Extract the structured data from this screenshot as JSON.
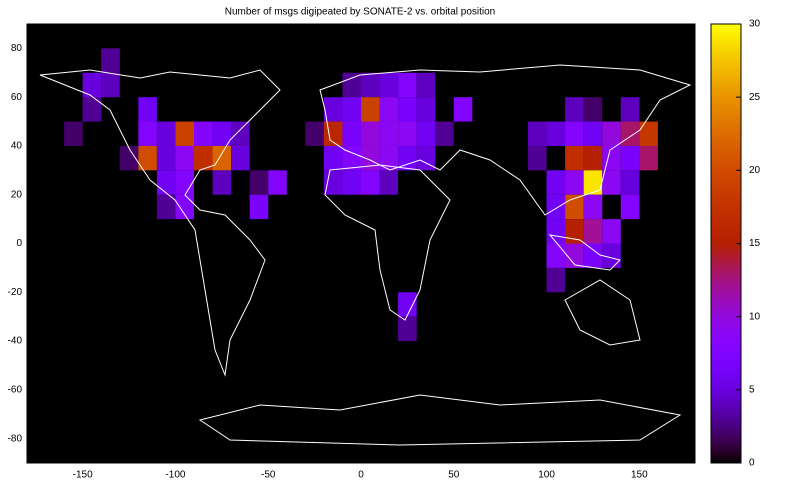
{
  "chart_data": {
    "type": "heatmap",
    "title": "Number of msgs digipeated by SONATE-2 vs. orbital position",
    "x": [
      -145,
      -135,
      -145,
      -135,
      -145,
      -155,
      -115,
      -115,
      -105,
      -95,
      -85,
      -75,
      -65,
      -125,
      -115,
      -105,
      -95,
      -85,
      -75,
      -65,
      -105,
      -95,
      -75,
      -55,
      -45,
      -105,
      -95,
      -55,
      -5,
      5,
      15,
      25,
      35,
      -15,
      -5,
      5,
      15,
      25,
      35,
      55,
      -25,
      -15,
      -5,
      5,
      15,
      25,
      35,
      45,
      -15,
      -5,
      5,
      15,
      25,
      35,
      -15,
      -5,
      5,
      15,
      25,
      25,
      115,
      125,
      145,
      95,
      105,
      115,
      125,
      135,
      145,
      155,
      95,
      115,
      125,
      135,
      145,
      155,
      105,
      115,
      125,
      135,
      145,
      105,
      115,
      125,
      145,
      105,
      115,
      125,
      135,
      105,
      115,
      125,
      135,
      105
    ],
    "y": [
      65,
      75,
      55,
      65,
      55,
      45,
      55,
      45,
      45,
      45,
      45,
      45,
      45,
      35,
      35,
      35,
      35,
      35,
      35,
      35,
      25,
      25,
      25,
      25,
      25,
      15,
      15,
      15,
      65,
      65,
      65,
      65,
      65,
      55,
      55,
      55,
      55,
      55,
      55,
      55,
      45,
      45,
      45,
      45,
      45,
      45,
      45,
      45,
      35,
      35,
      35,
      35,
      35,
      35,
      25,
      25,
      25,
      25,
      -25,
      -35,
      55,
      55,
      55,
      45,
      45,
      45,
      45,
      45,
      45,
      45,
      35,
      35,
      35,
      35,
      35,
      35,
      25,
      25,
      25,
      25,
      25,
      15,
      15,
      15,
      15,
      5,
      5,
      5,
      5,
      -5,
      -5,
      -5,
      -5,
      -15
    ],
    "values": [
      5,
      3,
      4,
      4,
      3,
      2,
      6,
      8,
      5,
      19,
      8,
      6,
      4,
      2,
      20,
      5,
      9,
      17,
      22,
      5,
      6,
      8,
      4,
      2,
      8,
      3,
      8,
      7,
      3,
      4,
      5,
      8,
      4,
      5,
      6,
      19,
      9,
      7,
      5,
      8,
      2,
      16,
      7,
      10,
      9,
      9,
      6,
      3,
      6,
      8,
      10,
      9,
      6,
      5,
      5,
      6,
      8,
      4,
      6,
      3,
      4,
      2,
      4,
      4,
      5,
      8,
      6,
      10,
      13,
      18,
      3,
      17,
      15,
      9,
      7,
      13,
      6,
      9,
      29,
      9,
      5,
      6,
      20,
      9,
      8,
      6,
      15,
      12,
      9,
      8,
      10,
      7,
      5,
      3
    ],
    "xlim": [
      -180,
      180
    ],
    "ylim": [
      -90,
      90
    ],
    "xticks": [
      -150,
      -100,
      -50,
      0,
      50,
      100,
      150
    ],
    "yticks": [
      -80,
      -60,
      -40,
      -20,
      0,
      20,
      40,
      60,
      80
    ],
    "clim": [
      0,
      30
    ],
    "cticks": [
      0,
      5,
      10,
      15,
      20,
      25,
      30
    ]
  }
}
